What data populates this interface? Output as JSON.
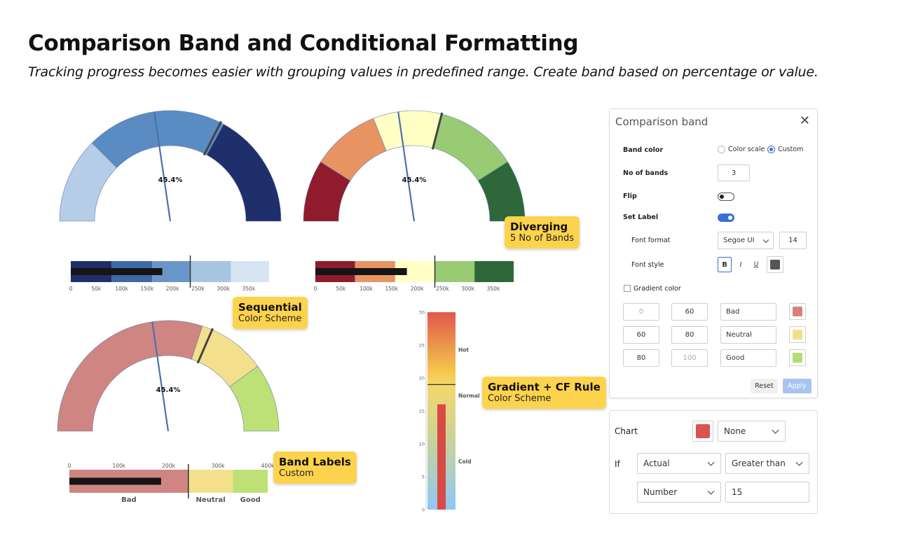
{
  "header": {
    "title": "Comparison Band and Conditional Formatting",
    "subtitle": "Tracking progress becomes easier with grouping values in predefined range. Create band based on percentage or value."
  },
  "gauges": [
    {
      "id": "sequential",
      "value_label": "45.4%",
      "value_pct": 45.4,
      "target_pct": 65,
      "bands": [
        {
          "from": 0,
          "to": 25,
          "color": "#b5cde6"
        },
        {
          "from": 25,
          "to": 42,
          "color": "#5a8cc3"
        },
        {
          "from": 42,
          "to": 66,
          "color": "#5a8cc3"
        },
        {
          "from": 66,
          "to": 100,
          "color": "#1e2f6b"
        }
      ]
    },
    {
      "id": "diverging",
      "value_label": "45.4%",
      "value_pct": 45.4,
      "target_pct": 58,
      "bands": [
        {
          "from": 0,
          "to": 18,
          "color": "#8f1b2d"
        },
        {
          "from": 18,
          "to": 38,
          "color": "#e79462"
        },
        {
          "from": 38,
          "to": 58,
          "color": "#ffffc6"
        },
        {
          "from": 58,
          "to": 82,
          "color": "#99cb74"
        },
        {
          "from": 82,
          "to": 100,
          "color": "#2e683a"
        }
      ]
    },
    {
      "id": "band-labels",
      "value_label": "45.4%",
      "value_pct": 45.4,
      "target_pct": 63,
      "bands": [
        {
          "from": 0,
          "to": 60,
          "color": "#cf8582"
        },
        {
          "from": 60,
          "to": 80,
          "color": "#f4e08c"
        },
        {
          "from": 80,
          "to": 100,
          "color": "#bde176"
        }
      ]
    }
  ],
  "bullets": [
    {
      "id": "sequential-bullet",
      "ticks": [
        "0",
        "50k",
        "100k",
        "150k",
        "200k",
        "250k",
        "300k",
        "350k"
      ],
      "max": 390000,
      "actual": 180000,
      "target": 235000,
      "bands": [
        {
          "to": 80000,
          "color": "#1e2f6b"
        },
        {
          "to": 160000,
          "color": "#3f68a6"
        },
        {
          "to": 235000,
          "color": "#6a95c9"
        },
        {
          "to": 315000,
          "color": "#a8c5e2"
        },
        {
          "to": 390000,
          "color": "#d7e4f2"
        }
      ]
    },
    {
      "id": "diverging-bullet",
      "ticks": [
        "0",
        "50k",
        "100k",
        "150k",
        "200k",
        "250k",
        "300k",
        "350k"
      ],
      "max": 390000,
      "actual": 180000,
      "target": 235000,
      "bands": [
        {
          "to": 78000,
          "color": "#8f1b2d"
        },
        {
          "to": 157000,
          "color": "#e79462"
        },
        {
          "to": 235000,
          "color": "#ffffc6"
        },
        {
          "to": 313000,
          "color": "#99cb74"
        },
        {
          "to": 390000,
          "color": "#2e683a"
        }
      ]
    },
    {
      "id": "labels-bullet",
      "ticks": [
        "0",
        "100k",
        "200k",
        "300k",
        "400k"
      ],
      "max": 400000,
      "actual": 185000,
      "target": 240000,
      "bands": [
        {
          "to": 240000,
          "color": "#cf8582",
          "label": "Bad"
        },
        {
          "to": 330000,
          "color": "#f4e08c",
          "label": "Neutral"
        },
        {
          "to": 400000,
          "color": "#bde176",
          "label": "Good"
        }
      ]
    }
  ],
  "thermo": {
    "ticks": [
      "30",
      "25",
      "20",
      "15",
      "10",
      "5",
      "0"
    ],
    "max": 30,
    "value": 16,
    "threshold": 19,
    "zone_labels": [
      "Hot",
      "Normal",
      "Cold"
    ]
  },
  "callouts": {
    "diverging": {
      "title": "Diverging",
      "sub": "5 No of Bands"
    },
    "sequential": {
      "title": "Sequential",
      "sub": "Color Scheme"
    },
    "gradient": {
      "title": "Gradient + CF Rule",
      "sub": "Color Scheme"
    },
    "band_labels": {
      "title": "Band Labels",
      "sub": "Custom"
    }
  },
  "band_panel": {
    "title": "Comparison band",
    "close": "✕",
    "band_color_label": "Band color",
    "option_scale": "Color scale",
    "option_custom": "Custom",
    "no_bands_label": "No of bands",
    "no_bands_value": "3",
    "flip_label": "Flip",
    "set_label_label": "Set Label",
    "font_format_label": "Font format",
    "font_name": "Segoe UI",
    "font_size": "14",
    "font_style_label": "Font style",
    "bold": "B",
    "italic": "I",
    "underline": "U",
    "font_color": "#555555",
    "gradient_label": "Gradient color",
    "rows": [
      {
        "from": "0",
        "to": "60",
        "label": "Bad",
        "color": "#d9807c"
      },
      {
        "from": "60",
        "to": "80",
        "label": "Neutral",
        "color": "#f2df8c"
      },
      {
        "from": "80",
        "to": "100",
        "label": "Good",
        "color": "#b4dd70"
      }
    ],
    "reset": "Reset",
    "apply": "Apply"
  },
  "cf_panel": {
    "chart_label": "Chart",
    "chart_color": "#d9534f",
    "chart_select": "None",
    "if_label": "If",
    "field_select": "Actual",
    "operator_select": "Greater than",
    "type_select": "Number",
    "value": "15"
  }
}
